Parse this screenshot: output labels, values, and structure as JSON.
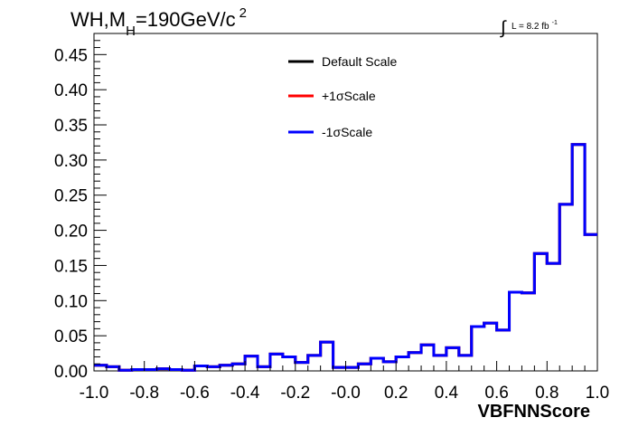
{
  "chart_data": {
    "type": "line",
    "title": "",
    "process_label": "WH,M",
    "process_sub": "H",
    "process_rest": "=190GeV/c",
    "process_sup": "2",
    "lumi_label": "L = 8.2 fb",
    "lumi_sup": "-1",
    "lumi_integral": "∫",
    "xlabel": "VBFNNScore",
    "ylabel": "",
    "xlim": [
      -1.0,
      1.0
    ],
    "ylim": [
      0.0,
      0.48
    ],
    "x_ticks": [
      -1.0,
      -0.8,
      -0.6,
      -0.4,
      -0.2,
      0.0,
      0.2,
      0.4,
      0.6,
      0.8,
      1.0
    ],
    "x_tick_labels": [
      "-1.0",
      "-0.8",
      "-0.6",
      "-0.4",
      "-0.2",
      "-0.0",
      "0.2",
      "0.4",
      "0.6",
      "0.8",
      "1.0"
    ],
    "y_ticks": [
      0.0,
      0.05,
      0.1,
      0.15,
      0.2,
      0.25,
      0.3,
      0.35,
      0.4,
      0.45
    ],
    "y_tick_labels": [
      "0.00",
      "0.05",
      "0.10",
      "0.15",
      "0.20",
      "0.25",
      "0.30",
      "0.35",
      "0.40",
      "0.45"
    ],
    "legend_position": "top-center",
    "bin_edges": [
      -1.0,
      -0.95,
      -0.9,
      -0.85,
      -0.8,
      -0.75,
      -0.7,
      -0.65,
      -0.6,
      -0.55,
      -0.5,
      -0.45,
      -0.4,
      -0.35,
      -0.3,
      -0.25,
      -0.2,
      -0.15,
      -0.1,
      -0.05,
      0.0,
      0.05,
      0.1,
      0.15,
      0.2,
      0.25,
      0.3,
      0.35,
      0.4,
      0.45,
      0.5,
      0.55,
      0.6,
      0.65,
      0.7,
      0.75,
      0.8,
      0.85,
      0.9,
      0.95,
      1.0
    ],
    "series": [
      {
        "name": "Default Scale",
        "color": "#000000",
        "values": [
          0.008,
          0.006,
          0.001,
          0.002,
          0.002,
          0.003,
          0.002,
          0.001,
          0.007,
          0.006,
          0.008,
          0.01,
          0.021,
          0.006,
          0.024,
          0.02,
          0.012,
          0.022,
          0.041,
          0.005,
          0.005,
          0.01,
          0.018,
          0.013,
          0.02,
          0.026,
          0.037,
          0.022,
          0.033,
          0.022,
          0.063,
          0.068,
          0.058,
          0.112,
          0.111,
          0.167,
          0.153,
          0.237,
          0.322,
          0.194
        ]
      },
      {
        "name": "+1σScale",
        "color": "#ff0000",
        "values": [
          0.008,
          0.006,
          0.001,
          0.002,
          0.002,
          0.003,
          0.002,
          0.001,
          0.007,
          0.006,
          0.008,
          0.01,
          0.021,
          0.006,
          0.024,
          0.02,
          0.012,
          0.022,
          0.041,
          0.005,
          0.005,
          0.01,
          0.018,
          0.013,
          0.02,
          0.026,
          0.037,
          0.022,
          0.033,
          0.022,
          0.063,
          0.068,
          0.058,
          0.112,
          0.111,
          0.167,
          0.153,
          0.237,
          0.322,
          0.194
        ]
      },
      {
        "name": "-1σScale",
        "color": "#0000ff",
        "values": [
          0.008,
          0.006,
          0.001,
          0.002,
          0.002,
          0.003,
          0.002,
          0.001,
          0.007,
          0.006,
          0.008,
          0.01,
          0.021,
          0.006,
          0.024,
          0.02,
          0.012,
          0.022,
          0.041,
          0.005,
          0.005,
          0.01,
          0.018,
          0.013,
          0.02,
          0.026,
          0.037,
          0.022,
          0.033,
          0.022,
          0.063,
          0.068,
          0.058,
          0.112,
          0.111,
          0.167,
          0.153,
          0.237,
          0.322,
          0.194
        ]
      }
    ]
  }
}
